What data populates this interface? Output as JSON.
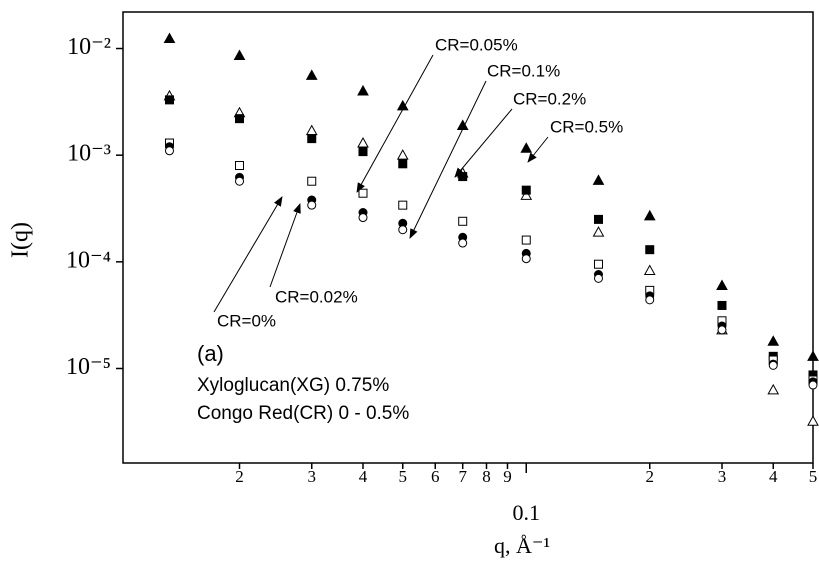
{
  "chart_data": {
    "type": "scatter",
    "xlabel": "q, Å⁻¹",
    "ylabel": "I(q)",
    "log_x": true,
    "log_y": true,
    "xlim": [
      0.0104,
      0.5
    ],
    "ylim": [
      1.3e-06,
      0.022
    ],
    "xticks": [
      {
        "value": 0.02,
        "label": "2"
      },
      {
        "value": 0.03,
        "label": "3"
      },
      {
        "value": 0.04,
        "label": "4"
      },
      {
        "value": 0.05,
        "label": "5"
      },
      {
        "value": 0.06,
        "label": "6"
      },
      {
        "value": 0.07,
        "label": "7"
      },
      {
        "value": 0.08,
        "label": "8"
      },
      {
        "value": 0.09,
        "label": "9"
      },
      0.1,
      {
        "value": 0.2,
        "label": "2"
      },
      {
        "value": 0.3,
        "label": "3"
      },
      {
        "value": 0.4,
        "label": "4"
      },
      {
        "value": 0.5,
        "label": "5"
      }
    ],
    "yticks": [
      {
        "value": 0.01,
        "label": "10⁻²"
      },
      {
        "value": 0.001,
        "label": "10⁻³"
      },
      {
        "value": 0.0001,
        "label": "10⁻⁴"
      },
      {
        "value": 1e-05,
        "label": "10⁻⁵"
      }
    ],
    "x": [
      0.0135,
      0.02,
      0.03,
      0.04,
      0.05,
      0.07,
      0.1,
      0.15,
      0.2,
      0.3,
      0.4,
      0.5
    ],
    "series": [
      {
        "name": "CR=0.5%",
        "marker": "triangle-filled",
        "color": "#000000",
        "values": [
          0.0124,
          0.0086,
          0.0056,
          0.004,
          0.0029,
          0.0019,
          0.00116,
          0.00058,
          0.00027,
          6e-05,
          1.8e-05,
          1.3e-05
        ]
      },
      {
        "name": "CR=0.2%",
        "marker": "triangle-open",
        "color": "#000000",
        "values": [
          0.0036,
          0.0025,
          0.0017,
          0.0013,
          0.001,
          0.00068,
          0.00042,
          0.00019,
          8.3e-05,
          2.3e-05,
          6.3e-06,
          3.2e-06
        ]
      },
      {
        "name": "CR=0.1%",
        "marker": "square-filled",
        "color": "#000000",
        "values": [
          0.0033,
          0.0022,
          0.00143,
          0.00108,
          0.00083,
          0.00063,
          0.00047,
          0.00025,
          0.00013,
          3.9e-05,
          1.3e-05,
          8.7e-06
        ]
      },
      {
        "name": "CR=0.05%",
        "marker": "square-open",
        "color": "#000000",
        "values": [
          0.0013,
          0.0008,
          0.00057,
          0.00044,
          0.00034,
          0.00024,
          0.00016,
          9.5e-05,
          5.4e-05,
          2.8e-05,
          1.2e-05,
          7.8e-06
        ]
      },
      {
        "name": "CR=0.02%",
        "marker": "circle-filled",
        "color": "#000000",
        "values": [
          0.0012,
          0.00062,
          0.00038,
          0.00029,
          0.00023,
          0.00017,
          0.00012,
          7.6e-05,
          4.8e-05,
          2.5e-05,
          1.1e-05,
          7.5e-06
        ]
      },
      {
        "name": "CR=0%",
        "marker": "circle-open",
        "color": "#000000",
        "values": [
          0.0011,
          0.00057,
          0.00034,
          0.00026,
          0.0002,
          0.00015,
          0.000107,
          7e-05,
          4.4e-05,
          2.3e-05,
          1.07e-05,
          7e-06
        ]
      }
    ],
    "annotations": [
      "(a)",
      "Xyloglucan(XG) 0.75%",
      "Congo Red(CR) 0 - 0.5%"
    ]
  }
}
